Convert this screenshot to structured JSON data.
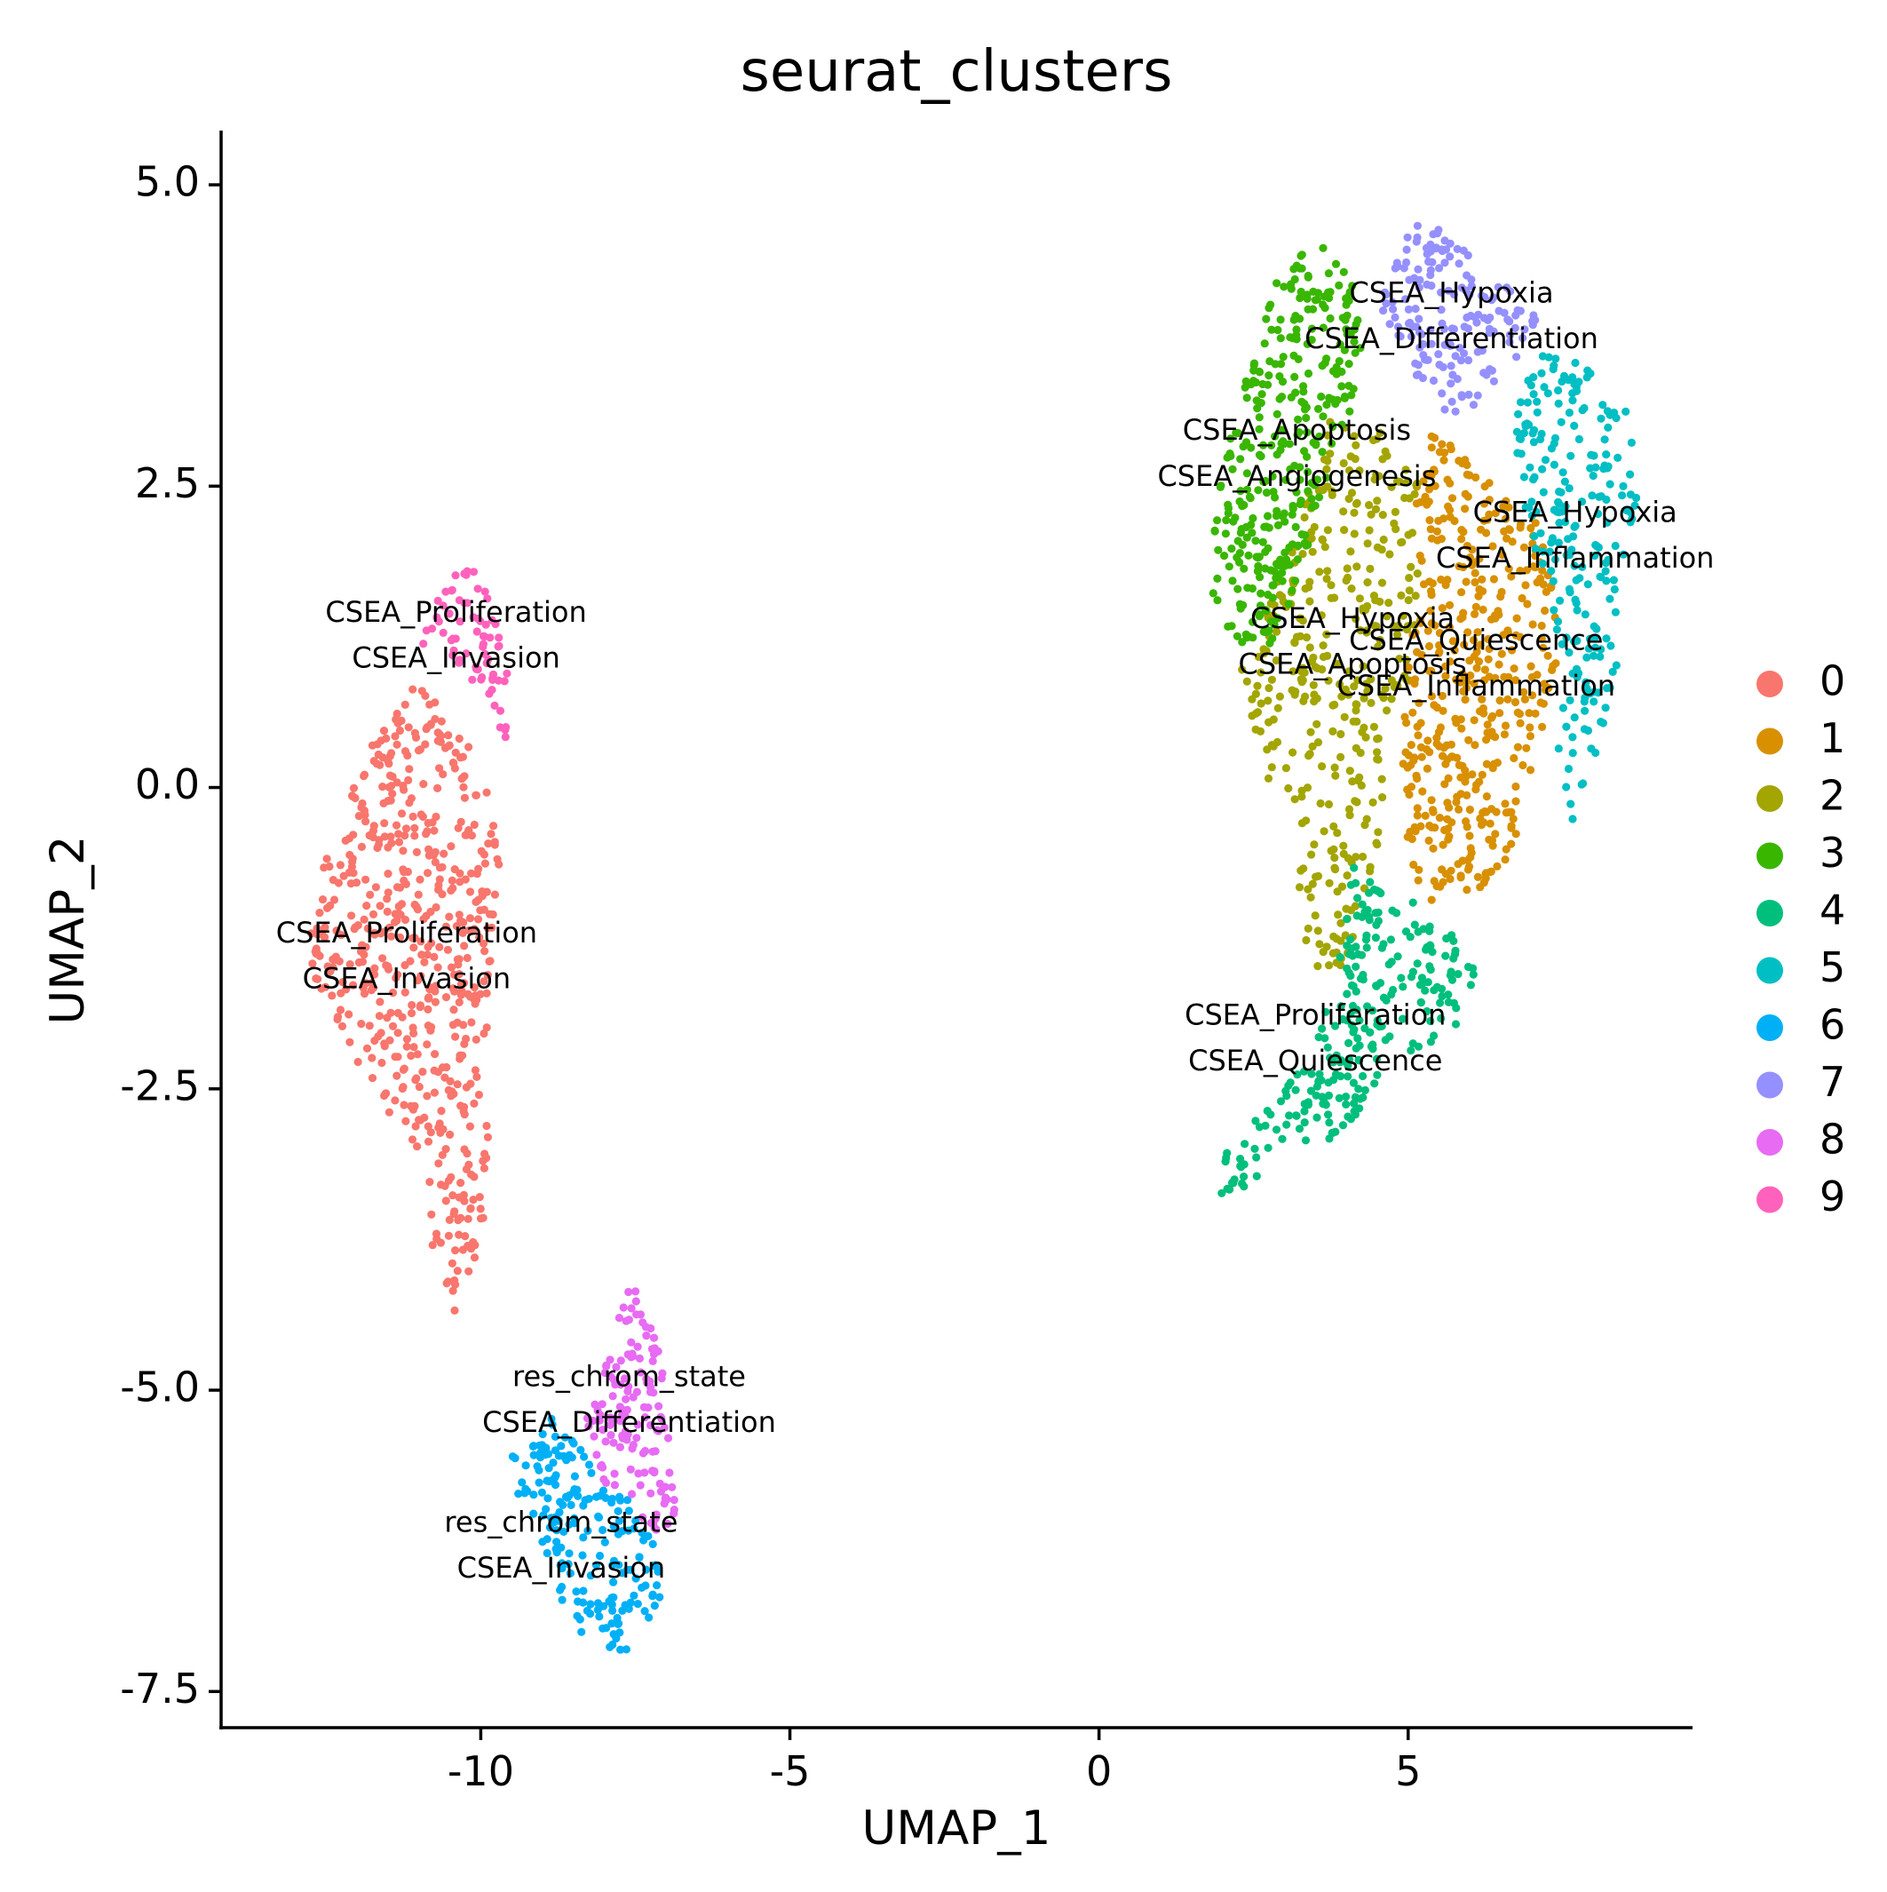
{
  "chart_data": {
    "type": "scatter",
    "title": "seurat_clusters",
    "xlabel": "UMAP_1",
    "ylabel": "UMAP_2",
    "xlim": [
      -14.2,
      9.6
    ],
    "ylim": [
      -7.8,
      5.45
    ],
    "x_ticks": [
      -10,
      -5,
      0,
      5
    ],
    "x_tick_labels": [
      "-10",
      "-5",
      "0",
      "5"
    ],
    "y_ticks": [
      5.0,
      2.5,
      0.0,
      -2.5,
      -5.0,
      -7.5
    ],
    "y_tick_labels": [
      "5.0",
      "2.5",
      "0.0",
      "-2.5",
      "-5.0",
      "-7.5"
    ],
    "grid": false,
    "legend_position": "right",
    "legend": [
      {
        "label": "0",
        "color": "#F8766D"
      },
      {
        "label": "1",
        "color": "#D89000"
      },
      {
        "label": "2",
        "color": "#A3A500"
      },
      {
        "label": "3",
        "color": "#39B600"
      },
      {
        "label": "4",
        "color": "#00BF7D"
      },
      {
        "label": "5",
        "color": "#00BFC4"
      },
      {
        "label": "6",
        "color": "#00B0F6"
      },
      {
        "label": "7",
        "color": "#9590FF"
      },
      {
        "label": "8",
        "color": "#E76BF3"
      },
      {
        "label": "9",
        "color": "#FF62BC"
      }
    ],
    "clusters": [
      {
        "cluster": "0",
        "color": "#F8766D",
        "count": 560,
        "shape": [
          [
            -11.1,
            0.9
          ],
          [
            -10.4,
            0.6
          ],
          [
            -10.0,
            0.3
          ],
          [
            -9.7,
            -0.6
          ],
          [
            -9.8,
            -1.6
          ],
          [
            -10.0,
            -2.4
          ],
          [
            -9.8,
            -3.2
          ],
          [
            -10.0,
            -3.8
          ],
          [
            -10.4,
            -4.4
          ],
          [
            -10.8,
            -3.8
          ],
          [
            -11.0,
            -3.1
          ],
          [
            -11.6,
            -2.6
          ],
          [
            -12.2,
            -2.1
          ],
          [
            -12.7,
            -1.6
          ],
          [
            -12.8,
            -1.0
          ],
          [
            -12.4,
            -0.4
          ],
          [
            -12.0,
            0.2
          ],
          [
            -11.5,
            0.6
          ]
        ]
      },
      {
        "cluster": "1",
        "color": "#D89000",
        "count": 430,
        "shape": [
          [
            5.4,
            3.0
          ],
          [
            6.3,
            2.6
          ],
          [
            7.1,
            2.2
          ],
          [
            7.4,
            1.5
          ],
          [
            7.4,
            0.8
          ],
          [
            7.0,
            0.1
          ],
          [
            6.7,
            -0.6
          ],
          [
            6.0,
            -0.9
          ],
          [
            5.3,
            -1.0
          ],
          [
            5.0,
            -0.5
          ],
          [
            4.9,
            0.3
          ],
          [
            5.0,
            1.0
          ],
          [
            5.2,
            1.8
          ],
          [
            5.1,
            2.5
          ]
        ]
      },
      {
        "cluster": "2",
        "color": "#A3A500",
        "count": 360,
        "shape": [
          [
            3.6,
            3.1
          ],
          [
            4.5,
            3.0
          ],
          [
            5.2,
            2.5
          ],
          [
            5.2,
            1.6
          ],
          [
            4.9,
            0.7
          ],
          [
            4.6,
            -0.2
          ],
          [
            4.3,
            -1.0
          ],
          [
            3.9,
            -1.6
          ],
          [
            3.4,
            -1.5
          ],
          [
            3.2,
            -0.8
          ],
          [
            3.0,
            -0.1
          ],
          [
            2.4,
            0.3
          ],
          [
            2.3,
            1.0
          ],
          [
            2.8,
            1.6
          ],
          [
            3.3,
            2.3
          ]
        ]
      },
      {
        "cluster": "3",
        "color": "#39B600",
        "count": 330,
        "shape": [
          [
            3.0,
            4.4
          ],
          [
            3.7,
            4.5
          ],
          [
            4.2,
            4.2
          ],
          [
            4.3,
            3.6
          ],
          [
            4.0,
            3.0
          ],
          [
            3.6,
            2.4
          ],
          [
            3.2,
            1.7
          ],
          [
            2.8,
            1.1
          ],
          [
            2.2,
            1.2
          ],
          [
            1.8,
            1.6
          ],
          [
            1.9,
            2.4
          ],
          [
            2.2,
            3.1
          ],
          [
            2.6,
            3.8
          ]
        ]
      },
      {
        "cluster": "4",
        "color": "#00BF7D",
        "count": 260,
        "shape": [
          [
            4.1,
            -0.6
          ],
          [
            4.9,
            -0.9
          ],
          [
            5.9,
            -1.2
          ],
          [
            6.2,
            -1.8
          ],
          [
            5.6,
            -2.1
          ],
          [
            4.6,
            -2.3
          ],
          [
            4.2,
            -2.8
          ],
          [
            3.4,
            -3.0
          ],
          [
            2.8,
            -3.1
          ],
          [
            2.1,
            -3.5
          ],
          [
            1.8,
            -3.2
          ],
          [
            2.2,
            -2.8
          ],
          [
            2.9,
            -2.6
          ],
          [
            3.5,
            -2.1
          ],
          [
            3.8,
            -1.6
          ],
          [
            4.0,
            -1.1
          ]
        ]
      },
      {
        "cluster": "5",
        "color": "#00BFC4",
        "count": 230,
        "shape": [
          [
            7.2,
            3.6
          ],
          [
            8.0,
            3.5
          ],
          [
            8.6,
            3.1
          ],
          [
            8.7,
            2.4
          ],
          [
            8.4,
            1.7
          ],
          [
            8.4,
            1.0
          ],
          [
            8.1,
            0.4
          ],
          [
            7.8,
            -0.2
          ],
          [
            7.4,
            -0.4
          ],
          [
            7.4,
            0.3
          ],
          [
            7.5,
            1.0
          ],
          [
            7.2,
            1.7
          ],
          [
            6.9,
            2.3
          ],
          [
            6.7,
            3.0
          ],
          [
            6.9,
            3.4
          ]
        ]
      },
      {
        "cluster": "6",
        "color": "#00B0F6",
        "count": 190,
        "shape": [
          [
            -9.6,
            -5.6
          ],
          [
            -8.9,
            -5.2
          ],
          [
            -8.2,
            -5.5
          ],
          [
            -7.5,
            -6.0
          ],
          [
            -7.1,
            -6.3
          ],
          [
            -7.1,
            -6.8
          ],
          [
            -7.7,
            -7.2
          ],
          [
            -8.4,
            -7.0
          ],
          [
            -8.9,
            -6.6
          ],
          [
            -9.2,
            -6.2
          ],
          [
            -9.4,
            -5.9
          ]
        ]
      },
      {
        "cluster": "7",
        "color": "#9590FF",
        "count": 160,
        "shape": [
          [
            4.7,
            4.3
          ],
          [
            5.1,
            4.8
          ],
          [
            5.5,
            4.7
          ],
          [
            6.0,
            4.4
          ],
          [
            6.5,
            4.2
          ],
          [
            7.1,
            3.9
          ],
          [
            6.8,
            3.6
          ],
          [
            6.2,
            3.2
          ],
          [
            5.8,
            3.0
          ],
          [
            5.4,
            3.2
          ],
          [
            4.9,
            3.6
          ],
          [
            4.5,
            3.9
          ]
        ]
      },
      {
        "cluster": "8",
        "color": "#E76BF3",
        "count": 140,
        "shape": [
          [
            -7.5,
            -4.1
          ],
          [
            -7.2,
            -4.5
          ],
          [
            -7.0,
            -5.0
          ],
          [
            -6.9,
            -5.5
          ],
          [
            -6.8,
            -6.0
          ],
          [
            -7.1,
            -6.2
          ],
          [
            -7.6,
            -6.0
          ],
          [
            -8.1,
            -5.7
          ],
          [
            -8.3,
            -5.2
          ],
          [
            -8.0,
            -4.8
          ],
          [
            -7.8,
            -4.5
          ],
          [
            -7.7,
            -4.2
          ]
        ]
      },
      {
        "cluster": "9",
        "color": "#FF62BC",
        "count": 70,
        "shape": [
          [
            -10.3,
            1.9
          ],
          [
            -9.9,
            1.7
          ],
          [
            -9.6,
            1.2
          ],
          [
            -9.5,
            0.6
          ],
          [
            -9.6,
            0.4
          ],
          [
            -10.0,
            0.8
          ],
          [
            -10.5,
            1.1
          ],
          [
            -11.0,
            1.2
          ],
          [
            -11.2,
            1.0
          ],
          [
            -10.8,
            1.5
          ]
        ]
      }
    ],
    "annotations": [
      {
        "text": "CSEA_Proliferation",
        "x": -10.4,
        "y": 1.44
      },
      {
        "text": "CSEA_Invasion",
        "x": -10.4,
        "y": 1.06
      },
      {
        "text": "CSEA_Proliferation",
        "x": -11.2,
        "y": -1.22
      },
      {
        "text": "CSEA_Invasion",
        "x": -11.2,
        "y": -1.6
      },
      {
        "text": "res_chrom_state",
        "x": -7.6,
        "y": -4.9
      },
      {
        "text": "CSEA_Differentiation",
        "x": -7.6,
        "y": -5.28
      },
      {
        "text": "res_chrom_state",
        "x": -8.7,
        "y": -6.11
      },
      {
        "text": "CSEA_Invasion",
        "x": -8.7,
        "y": -6.49
      },
      {
        "text": "CSEA_Hypoxia",
        "x": 5.7,
        "y": 4.09
      },
      {
        "text": "CSEA_Differentiation",
        "x": 5.7,
        "y": 3.71
      },
      {
        "text": "CSEA_Apoptosis",
        "x": 3.2,
        "y": 2.95
      },
      {
        "text": "CSEA_Angiogenesis",
        "x": 3.2,
        "y": 2.57
      },
      {
        "text": "CSEA_Hypoxia",
        "x": 7.7,
        "y": 2.27
      },
      {
        "text": "CSEA_Inflammation",
        "x": 7.7,
        "y": 1.89
      },
      {
        "text": "CSEA_Hypoxia",
        "x": 4.1,
        "y": 1.39
      },
      {
        "text": "CSEA_Quiescence",
        "x": 6.1,
        "y": 1.21
      },
      {
        "text": "CSEA_Apoptosis",
        "x": 4.1,
        "y": 1.01
      },
      {
        "text": "CSEA_Inflammation",
        "x": 6.1,
        "y": 0.83
      },
      {
        "text": "CSEA_Proliferation",
        "x": 3.5,
        "y": -1.9
      },
      {
        "text": "CSEA_Quiescence",
        "x": 3.5,
        "y": -2.28
      }
    ]
  }
}
